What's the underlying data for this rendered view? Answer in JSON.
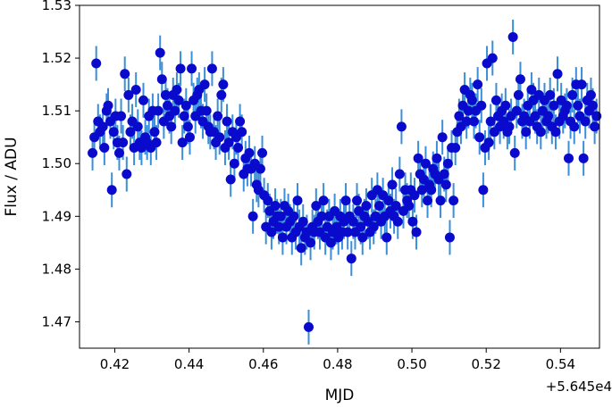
{
  "chart_data": {
    "type": "scatter",
    "title": "",
    "xlabel": "MJD",
    "ylabel": "Flux / ADU",
    "x_offset_label": "+5.645e4",
    "xlim": [
      0.4105,
      0.5505
    ],
    "ylim": [
      1.465,
      1.53
    ],
    "xticks": [
      0.42,
      0.44,
      0.46,
      0.48,
      0.5,
      0.52,
      0.54
    ],
    "xtick_labels": [
      "0.42",
      "0.44",
      "0.46",
      "0.48",
      "0.50",
      "0.52",
      "0.54"
    ],
    "yticks": [
      1.47,
      1.48,
      1.49,
      1.5,
      1.51,
      1.52,
      1.53
    ],
    "ytick_labels": [
      "1.47",
      "1.48",
      "1.49",
      "1.50",
      "1.51",
      "1.52",
      "1.53"
    ],
    "grid": false,
    "legend": "none",
    "colors": {
      "marker": "#0a0acd",
      "errorbar": "#3a8fd8"
    },
    "error": 0.0033,
    "series": [
      {
        "points": [
          [
            0.414,
            1.502
          ],
          [
            0.4145,
            1.505
          ],
          [
            0.415,
            1.519
          ],
          [
            0.4155,
            1.508
          ],
          [
            0.416,
            1.506
          ],
          [
            0.4168,
            1.507
          ],
          [
            0.4172,
            1.503
          ],
          [
            0.4178,
            1.51
          ],
          [
            0.4182,
            1.511
          ],
          [
            0.4188,
            1.508
          ],
          [
            0.4192,
            1.495
          ],
          [
            0.4197,
            1.506
          ],
          [
            0.4202,
            1.509
          ],
          [
            0.4207,
            1.504
          ],
          [
            0.4212,
            1.502
          ],
          [
            0.4217,
            1.509
          ],
          [
            0.4222,
            1.504
          ],
          [
            0.4227,
            1.517
          ],
          [
            0.4232,
            1.498
          ],
          [
            0.4237,
            1.513
          ],
          [
            0.4242,
            1.506
          ],
          [
            0.4247,
            1.508
          ],
          [
            0.4252,
            1.503
          ],
          [
            0.4257,
            1.514
          ],
          [
            0.4262,
            1.507
          ],
          [
            0.4267,
            1.504
          ],
          [
            0.4272,
            1.503
          ],
          [
            0.4277,
            1.512
          ],
          [
            0.4282,
            1.505
          ],
          [
            0.4287,
            1.504
          ],
          [
            0.4292,
            1.509
          ],
          [
            0.4297,
            1.503
          ],
          [
            0.4302,
            1.51
          ],
          [
            0.4307,
            1.506
          ],
          [
            0.4312,
            1.504
          ],
          [
            0.4317,
            1.51
          ],
          [
            0.4322,
            1.521
          ],
          [
            0.4327,
            1.516
          ],
          [
            0.4332,
            1.508
          ],
          [
            0.4337,
            1.513
          ],
          [
            0.4342,
            1.511
          ],
          [
            0.4347,
            1.509
          ],
          [
            0.4352,
            1.507
          ],
          [
            0.4357,
            1.513
          ],
          [
            0.4362,
            1.51
          ],
          [
            0.4367,
            1.514
          ],
          [
            0.4372,
            1.512
          ],
          [
            0.4377,
            1.518
          ],
          [
            0.4382,
            1.504
          ],
          [
            0.4387,
            1.509
          ],
          [
            0.4392,
            1.511
          ],
          [
            0.4397,
            1.507
          ],
          [
            0.4402,
            1.505
          ],
          [
            0.4407,
            1.518
          ],
          [
            0.4412,
            1.512
          ],
          [
            0.4417,
            1.509
          ],
          [
            0.4422,
            1.513
          ],
          [
            0.4427,
            1.514
          ],
          [
            0.4432,
            1.51
          ],
          [
            0.4437,
            1.508
          ],
          [
            0.4442,
            1.515
          ],
          [
            0.4447,
            1.51
          ],
          [
            0.4452,
            1.507
          ],
          [
            0.4457,
            1.506
          ],
          [
            0.4462,
            1.518
          ],
          [
            0.4467,
            1.506
          ],
          [
            0.4472,
            1.504
          ],
          [
            0.4477,
            1.509
          ],
          [
            0.4482,
            1.505
          ],
          [
            0.4487,
            1.513
          ],
          [
            0.4492,
            1.515
          ],
          [
            0.4497,
            1.503
          ],
          [
            0.4502,
            1.508
          ],
          [
            0.4507,
            1.504
          ],
          [
            0.4512,
            1.497
          ],
          [
            0.4517,
            1.506
          ],
          [
            0.4522,
            1.5
          ],
          [
            0.4527,
            1.505
          ],
          [
            0.4532,
            1.503
          ],
          [
            0.4537,
            1.508
          ],
          [
            0.4542,
            1.506
          ],
          [
            0.4547,
            1.498
          ],
          [
            0.4552,
            1.501
          ],
          [
            0.4557,
            1.499
          ],
          [
            0.4562,
            1.502
          ],
          [
            0.4567,
            1.499
          ],
          [
            0.4572,
            1.49
          ],
          [
            0.4577,
            1.5
          ],
          [
            0.4582,
            1.496
          ],
          [
            0.4587,
            1.495
          ],
          [
            0.4592,
            1.499
          ],
          [
            0.4597,
            1.502
          ],
          [
            0.4602,
            1.494
          ],
          [
            0.4607,
            1.488
          ],
          [
            0.4612,
            1.493
          ],
          [
            0.4617,
            1.491
          ],
          [
            0.4622,
            1.487
          ],
          [
            0.4627,
            1.489
          ],
          [
            0.4632,
            1.492
          ],
          [
            0.4637,
            1.49
          ],
          [
            0.4642,
            1.488
          ],
          [
            0.4647,
            1.49
          ],
          [
            0.4652,
            1.486
          ],
          [
            0.4657,
            1.492
          ],
          [
            0.4662,
            1.488
          ],
          [
            0.4667,
            1.491
          ],
          [
            0.4672,
            1.489
          ],
          [
            0.4677,
            1.486
          ],
          [
            0.4682,
            1.49
          ],
          [
            0.4687,
            1.487
          ],
          [
            0.4692,
            1.493
          ],
          [
            0.4697,
            1.488
          ],
          [
            0.4702,
            1.484
          ],
          [
            0.4707,
            1.489
          ],
          [
            0.4712,
            1.486
          ],
          [
            0.4717,
            1.487
          ],
          [
            0.4722,
            1.469
          ],
          [
            0.4727,
            1.485
          ],
          [
            0.4732,
            1.488
          ],
          [
            0.4737,
            1.487
          ],
          [
            0.4742,
            1.492
          ],
          [
            0.4747,
            1.489
          ],
          [
            0.4752,
            1.487
          ],
          [
            0.4757,
            1.49
          ],
          [
            0.4762,
            1.493
          ],
          [
            0.4767,
            1.486
          ],
          [
            0.4772,
            1.488
          ],
          [
            0.4777,
            1.49
          ],
          [
            0.4782,
            1.485
          ],
          [
            0.4787,
            1.487
          ],
          [
            0.4792,
            1.491
          ],
          [
            0.4797,
            1.488
          ],
          [
            0.4802,
            1.486
          ],
          [
            0.4807,
            1.49
          ],
          [
            0.4812,
            1.487
          ],
          [
            0.4817,
            1.489
          ],
          [
            0.4822,
            1.493
          ],
          [
            0.4827,
            1.487
          ],
          [
            0.4832,
            1.49
          ],
          [
            0.4837,
            1.482
          ],
          [
            0.4842,
            1.489
          ],
          [
            0.4847,
            1.487
          ],
          [
            0.4852,
            1.493
          ],
          [
            0.4857,
            1.491
          ],
          [
            0.4862,
            1.488
          ],
          [
            0.4867,
            1.486
          ],
          [
            0.4872,
            1.49
          ],
          [
            0.4877,
            1.492
          ],
          [
            0.4882,
            1.489
          ],
          [
            0.4887,
            1.487
          ],
          [
            0.4892,
            1.494
          ],
          [
            0.4897,
            1.488
          ],
          [
            0.4902,
            1.49
          ],
          [
            0.4907,
            1.495
          ],
          [
            0.4912,
            1.492
          ],
          [
            0.4917,
            1.489
          ],
          [
            0.4922,
            1.494
          ],
          [
            0.4927,
            1.49
          ],
          [
            0.4932,
            1.486
          ],
          [
            0.4937,
            1.493
          ],
          [
            0.4942,
            1.491
          ],
          [
            0.4947,
            1.496
          ],
          [
            0.4952,
            1.49
          ],
          [
            0.4957,
            1.492
          ],
          [
            0.4962,
            1.489
          ],
          [
            0.4967,
            1.498
          ],
          [
            0.4972,
            1.507
          ],
          [
            0.4977,
            1.491
          ],
          [
            0.4982,
            1.495
          ],
          [
            0.4987,
            1.493
          ],
          [
            0.4992,
            1.492
          ],
          [
            0.4997,
            1.495
          ],
          [
            0.5002,
            1.489
          ],
          [
            0.5007,
            1.494
          ],
          [
            0.5012,
            1.487
          ],
          [
            0.5017,
            1.501
          ],
          [
            0.5022,
            1.498
          ],
          [
            0.5027,
            1.495
          ],
          [
            0.5032,
            1.497
          ],
          [
            0.5037,
            1.5
          ],
          [
            0.5042,
            1.493
          ],
          [
            0.5047,
            1.496
          ],
          [
            0.5052,
            1.495
          ],
          [
            0.5057,
            1.499
          ],
          [
            0.5062,
            1.498
          ],
          [
            0.5067,
            1.501
          ],
          [
            0.5072,
            1.497
          ],
          [
            0.5077,
            1.493
          ],
          [
            0.5082,
            1.505
          ],
          [
            0.5087,
            1.498
          ],
          [
            0.5092,
            1.496
          ],
          [
            0.5097,
            1.5
          ],
          [
            0.5102,
            1.486
          ],
          [
            0.5107,
            1.503
          ],
          [
            0.5112,
            1.493
          ],
          [
            0.5117,
            1.503
          ],
          [
            0.5122,
            1.506
          ],
          [
            0.5127,
            1.509
          ],
          [
            0.5132,
            1.507
          ],
          [
            0.5137,
            1.511
          ],
          [
            0.5142,
            1.514
          ],
          [
            0.5147,
            1.508
          ],
          [
            0.5152,
            1.51
          ],
          [
            0.5157,
            1.513
          ],
          [
            0.5162,
            1.512
          ],
          [
            0.5167,
            1.508
          ],
          [
            0.5172,
            1.51
          ],
          [
            0.5177,
            1.515
          ],
          [
            0.5182,
            1.505
          ],
          [
            0.5187,
            1.511
          ],
          [
            0.5192,
            1.495
          ],
          [
            0.5197,
            1.503
          ],
          [
            0.5202,
            1.519
          ],
          [
            0.5207,
            1.504
          ],
          [
            0.5212,
            1.508
          ],
          [
            0.5217,
            1.52
          ],
          [
            0.5222,
            1.506
          ],
          [
            0.5227,
            1.512
          ],
          [
            0.5232,
            1.509
          ],
          [
            0.5237,
            1.507
          ],
          [
            0.5242,
            1.51
          ],
          [
            0.5247,
            1.508
          ],
          [
            0.5252,
            1.511
          ],
          [
            0.5257,
            1.506
          ],
          [
            0.5262,
            1.507
          ],
          [
            0.5267,
            1.509
          ],
          [
            0.5272,
            1.524
          ],
          [
            0.5277,
            1.502
          ],
          [
            0.5282,
            1.51
          ],
          [
            0.5287,
            1.513
          ],
          [
            0.5292,
            1.516
          ],
          [
            0.5297,
            1.508
          ],
          [
            0.5302,
            1.509
          ],
          [
            0.5307,
            1.506
          ],
          [
            0.5312,
            1.511
          ],
          [
            0.5317,
            1.508
          ],
          [
            0.5322,
            1.514
          ],
          [
            0.5327,
            1.512
          ],
          [
            0.5332,
            1.509
          ],
          [
            0.5337,
            1.507
          ],
          [
            0.5342,
            1.513
          ],
          [
            0.5347,
            1.506
          ],
          [
            0.5352,
            1.51
          ],
          [
            0.5357,
            1.512
          ],
          [
            0.5362,
            1.508
          ],
          [
            0.5367,
            1.509
          ],
          [
            0.5372,
            1.513
          ],
          [
            0.5377,
            1.507
          ],
          [
            0.5382,
            1.511
          ],
          [
            0.5387,
            1.506
          ],
          [
            0.5392,
            1.517
          ],
          [
            0.5397,
            1.508
          ],
          [
            0.5402,
            1.512
          ],
          [
            0.5407,
            1.509
          ],
          [
            0.5412,
            1.51
          ],
          [
            0.5417,
            1.511
          ],
          [
            0.5422,
            1.501
          ],
          [
            0.5427,
            1.508
          ],
          [
            0.5432,
            1.513
          ],
          [
            0.5437,
            1.507
          ],
          [
            0.5442,
            1.515
          ],
          [
            0.5447,
            1.511
          ],
          [
            0.5452,
            1.509
          ],
          [
            0.5457,
            1.515
          ],
          [
            0.5462,
            1.501
          ],
          [
            0.5467,
            1.508
          ],
          [
            0.5472,
            1.512
          ],
          [
            0.5477,
            1.51
          ],
          [
            0.5482,
            1.513
          ],
          [
            0.5487,
            1.511
          ],
          [
            0.5492,
            1.507
          ],
          [
            0.5497,
            1.509
          ]
        ]
      }
    ]
  }
}
